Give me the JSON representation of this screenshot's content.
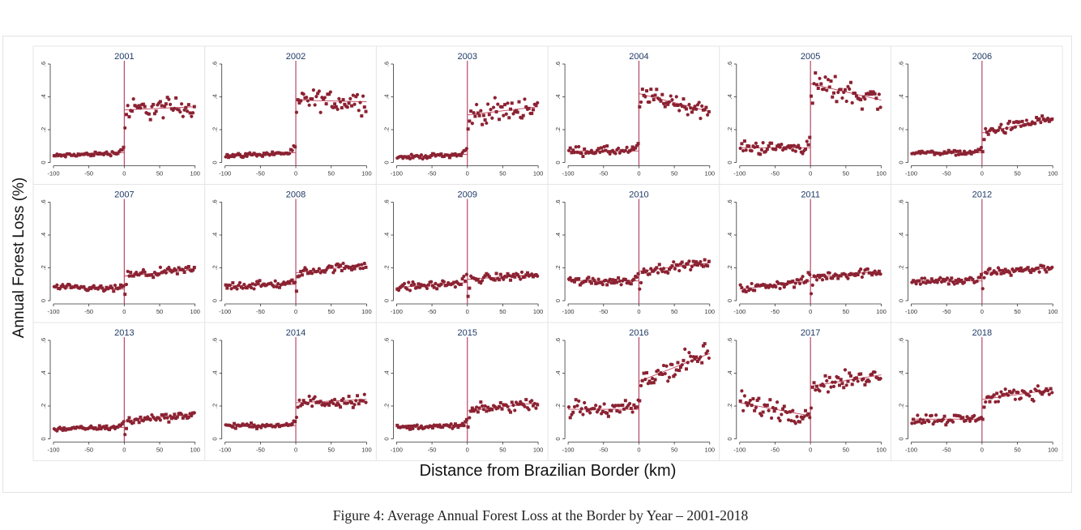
{
  "caption": "Figure 4: Average Annual Forest Loss at the Border by Year – 2001-2018",
  "colors": {
    "marker": "#8b2232",
    "fit": "#c0405a",
    "cutoff": "#b03a5a",
    "panel_title": "#1f3a66"
  },
  "chart_data": {
    "type": "scatter",
    "xlabel": "Distance from Brazilian Border (km)",
    "ylabel": "Annual Forest Loss (%)",
    "xlim": [
      -100,
      100
    ],
    "ylim": [
      0,
      0.6
    ],
    "xticks": [
      "-100",
      "-50",
      "0",
      "50",
      "100"
    ],
    "yticks": [
      "0",
      ".2",
      ".4",
      ".6"
    ],
    "cutoff": 0,
    "panels": [
      {
        "year": "2001",
        "left": [
          0.04,
          0.06
        ],
        "right": [
          0.32,
          0.34
        ],
        "left_noise": 0.01,
        "right_noise": 0.05
      },
      {
        "year": "2002",
        "left": [
          0.04,
          0.06
        ],
        "right": [
          0.38,
          0.37
        ],
        "left_noise": 0.01,
        "right_noise": 0.05
      },
      {
        "year": "2003",
        "left": [
          0.03,
          0.05
        ],
        "right": [
          0.29,
          0.34
        ],
        "left_noise": 0.01,
        "right_noise": 0.05
      },
      {
        "year": "2004",
        "left": [
          0.07,
          0.07
        ],
        "right": [
          0.42,
          0.31
        ],
        "left_noise": 0.02,
        "right_noise": 0.04
      },
      {
        "year": "2005",
        "left": [
          0.09,
          0.09
        ],
        "right": [
          0.48,
          0.38
        ],
        "left_noise": 0.03,
        "right_noise": 0.06
      },
      {
        "year": "2006",
        "left": [
          0.06,
          0.06
        ],
        "right": [
          0.18,
          0.27
        ],
        "left_noise": 0.01,
        "right_noise": 0.025
      },
      {
        "year": "2007",
        "left": [
          0.08,
          0.07
        ],
        "right": [
          0.15,
          0.19
        ],
        "left_noise": 0.015,
        "right_noise": 0.02
      },
      {
        "year": "2008",
        "left": [
          0.09,
          0.1
        ],
        "right": [
          0.17,
          0.22
        ],
        "left_noise": 0.02,
        "right_noise": 0.02
      },
      {
        "year": "2009",
        "left": [
          0.08,
          0.11
        ],
        "right": [
          0.13,
          0.16
        ],
        "left_noise": 0.02,
        "right_noise": 0.02
      },
      {
        "year": "2010",
        "left": [
          0.12,
          0.12
        ],
        "right": [
          0.18,
          0.23
        ],
        "left_noise": 0.02,
        "right_noise": 0.02
      },
      {
        "year": "2011",
        "left": [
          0.07,
          0.12
        ],
        "right": [
          0.14,
          0.18
        ],
        "left_noise": 0.02,
        "right_noise": 0.02
      },
      {
        "year": "2012",
        "left": [
          0.12,
          0.12
        ],
        "right": [
          0.17,
          0.2
        ],
        "left_noise": 0.02,
        "right_noise": 0.02
      },
      {
        "year": "2013",
        "left": [
          0.06,
          0.07
        ],
        "right": [
          0.11,
          0.15
        ],
        "left_noise": 0.01,
        "right_noise": 0.02
      },
      {
        "year": "2014",
        "left": [
          0.08,
          0.08
        ],
        "right": [
          0.22,
          0.24
        ],
        "left_noise": 0.01,
        "right_noise": 0.03
      },
      {
        "year": "2015",
        "left": [
          0.07,
          0.08
        ],
        "right": [
          0.17,
          0.22
        ],
        "left_noise": 0.01,
        "right_noise": 0.025
      },
      {
        "year": "2016",
        "left": [
          0.18,
          0.18
        ],
        "right": [
          0.35,
          0.52
        ],
        "left_noise": 0.04,
        "right_noise": 0.06
      },
      {
        "year": "2017",
        "left": [
          0.22,
          0.14
        ],
        "right": [
          0.32,
          0.39
        ],
        "left_noise": 0.05,
        "right_noise": 0.04
      },
      {
        "year": "2018",
        "left": [
          0.12,
          0.12
        ],
        "right": [
          0.24,
          0.3
        ],
        "left_noise": 0.025,
        "right_noise": 0.03
      }
    ]
  }
}
